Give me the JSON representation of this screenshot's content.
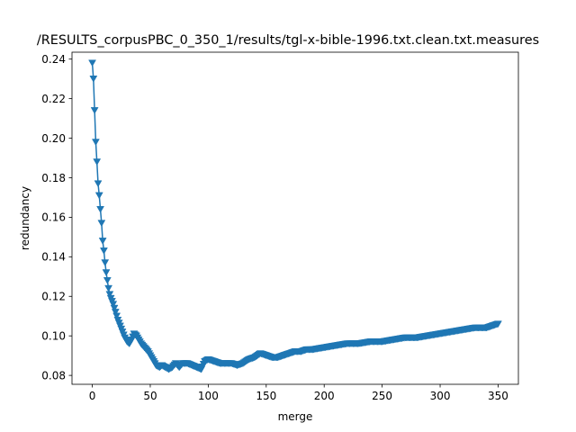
{
  "chart_data": {
    "type": "line",
    "title": "/RESULTS_corpusPBC_0_350_1/results/tgl-x-bible-1996.txt.clean.txt.measures",
    "xlabel": "merge",
    "ylabel": "redundancy",
    "xlim": [
      -17.5,
      367.5
    ],
    "ylim": [
      0.0755,
      0.2435
    ],
    "xticks": [
      0,
      50,
      100,
      150,
      200,
      250,
      300,
      350
    ],
    "yticks": [
      0.08,
      0.1,
      0.12,
      0.14,
      0.16,
      0.18,
      0.2,
      0.22,
      0.24
    ],
    "ytick_labels": [
      "0.08",
      "0.10",
      "0.12",
      "0.14",
      "0.16",
      "0.18",
      "0.20",
      "0.22",
      "0.24"
    ],
    "grid": false,
    "marker": "triangle-down",
    "series_color": "#1f77b4",
    "series": [
      {
        "anchors": [
          [
            0,
            0.238
          ],
          [
            1,
            0.23
          ],
          [
            2,
            0.214
          ],
          [
            3,
            0.198
          ],
          [
            4,
            0.188
          ],
          [
            5,
            0.177
          ],
          [
            6,
            0.171
          ],
          [
            7,
            0.164
          ],
          [
            8,
            0.157
          ],
          [
            9,
            0.148
          ],
          [
            10,
            0.143
          ],
          [
            11,
            0.137
          ],
          [
            12,
            0.132
          ],
          [
            13,
            0.128
          ],
          [
            14,
            0.124
          ],
          [
            15,
            0.121
          ],
          [
            16,
            0.119
          ],
          [
            18,
            0.116
          ],
          [
            20,
            0.112
          ],
          [
            22,
            0.108
          ],
          [
            24,
            0.105
          ],
          [
            26,
            0.102
          ],
          [
            28,
            0.099
          ],
          [
            30,
            0.097
          ],
          [
            32,
            0.096
          ],
          [
            34,
            0.098
          ],
          [
            36,
            0.101
          ],
          [
            38,
            0.1
          ],
          [
            40,
            0.098
          ],
          [
            42,
            0.096
          ],
          [
            45,
            0.094
          ],
          [
            48,
            0.092
          ],
          [
            50,
            0.09
          ],
          [
            52,
            0.088
          ],
          [
            55,
            0.085
          ],
          [
            58,
            0.084
          ],
          [
            60,
            0.085
          ],
          [
            63,
            0.084
          ],
          [
            66,
            0.083
          ],
          [
            69,
            0.084
          ],
          [
            72,
            0.086
          ],
          [
            75,
            0.084
          ],
          [
            78,
            0.086
          ],
          [
            82,
            0.086
          ],
          [
            86,
            0.085
          ],
          [
            90,
            0.084
          ],
          [
            94,
            0.083
          ],
          [
            97,
            0.087
          ],
          [
            100,
            0.088
          ],
          [
            105,
            0.087
          ],
          [
            110,
            0.086
          ],
          [
            120,
            0.086
          ],
          [
            125,
            0.085
          ],
          [
            130,
            0.086
          ],
          [
            135,
            0.088
          ],
          [
            140,
            0.089
          ],
          [
            145,
            0.091
          ],
          [
            150,
            0.09
          ],
          [
            155,
            0.089
          ],
          [
            160,
            0.089
          ],
          [
            165,
            0.09
          ],
          [
            170,
            0.091
          ],
          [
            175,
            0.092
          ],
          [
            180,
            0.092
          ],
          [
            185,
            0.093
          ],
          [
            190,
            0.093
          ],
          [
            200,
            0.094
          ],
          [
            210,
            0.095
          ],
          [
            220,
            0.096
          ],
          [
            230,
            0.096
          ],
          [
            240,
            0.097
          ],
          [
            250,
            0.097
          ],
          [
            260,
            0.098
          ],
          [
            270,
            0.099
          ],
          [
            280,
            0.099
          ],
          [
            290,
            0.1
          ],
          [
            300,
            0.101
          ],
          [
            310,
            0.102
          ],
          [
            320,
            0.103
          ],
          [
            330,
            0.104
          ],
          [
            340,
            0.104
          ],
          [
            350,
            0.106
          ]
        ]
      }
    ]
  }
}
